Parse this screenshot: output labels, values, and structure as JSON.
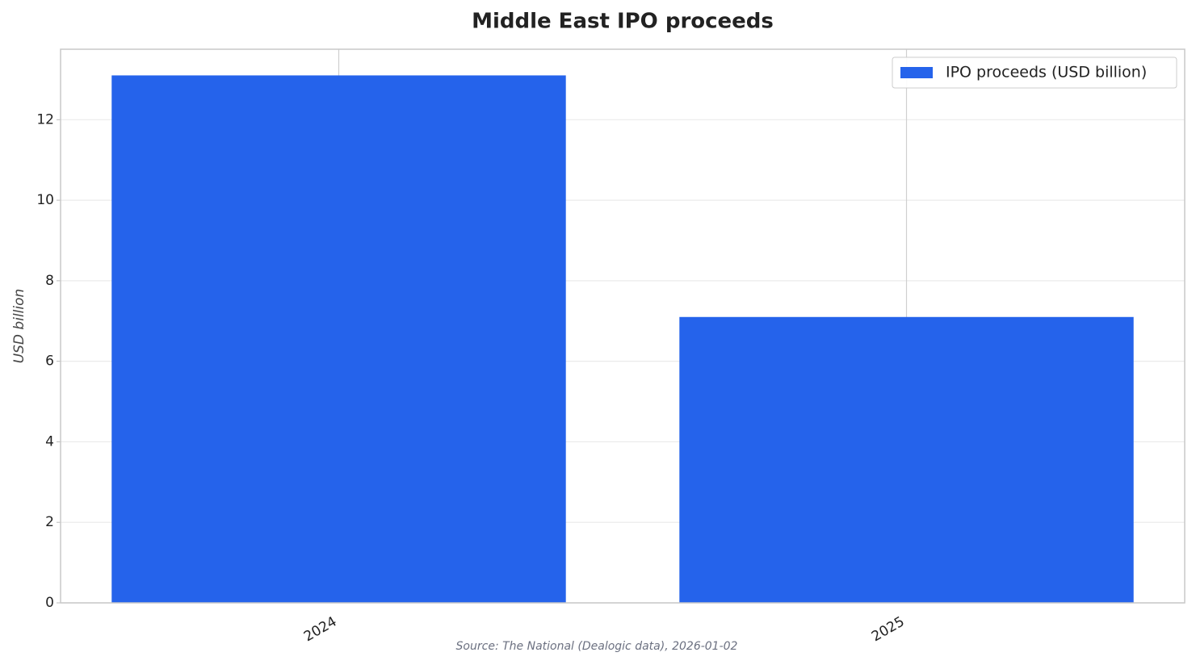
{
  "chart_data": {
    "type": "bar",
    "title": "Middle East IPO proceeds",
    "y_label": "USD billion",
    "source": "Source: The National (Dealogic data), 2026-01-02",
    "categories": [
      "2024",
      "2025"
    ],
    "series": [
      {
        "name": "IPO proceeds (USD billion)",
        "color": "#2563eb",
        "values": [
          13.1,
          7.1
        ]
      }
    ],
    "ylim": [
      0,
      13.75
    ],
    "yticks": [
      0,
      2,
      4,
      6,
      8,
      10,
      12
    ],
    "grid": true,
    "legend": "upper right"
  }
}
